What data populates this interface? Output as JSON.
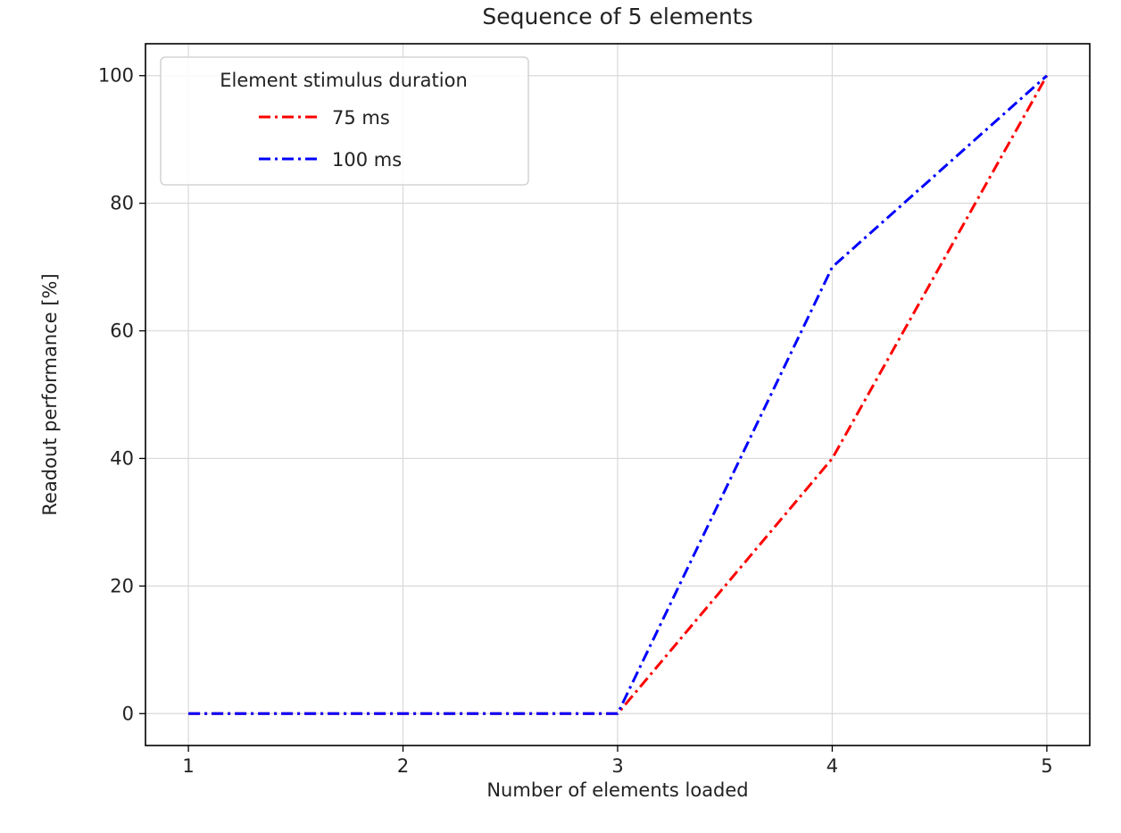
{
  "chart_data": {
    "type": "line",
    "title": "Sequence of 5 elements",
    "xlabel": "Number of elements loaded",
    "ylabel": "Readout performance [%]",
    "x": [
      1,
      2,
      3,
      4,
      5
    ],
    "xlim": [
      0.8,
      5.2
    ],
    "ylim": [
      -5,
      105
    ],
    "xticks": [
      1,
      2,
      3,
      4,
      5
    ],
    "yticks": [
      0,
      20,
      40,
      60,
      80,
      100
    ],
    "grid": true,
    "legend": {
      "title": "Element stimulus duration",
      "placement": "upper left"
    },
    "series": [
      {
        "name": "75 ms",
        "color": "#ff0000",
        "linestyle": "dash-dot",
        "values": [
          0,
          0,
          0,
          40,
          100
        ]
      },
      {
        "name": "100 ms",
        "color": "#0000ff",
        "linestyle": "dash-dot",
        "values": [
          0,
          0,
          0,
          70,
          100
        ]
      }
    ]
  }
}
